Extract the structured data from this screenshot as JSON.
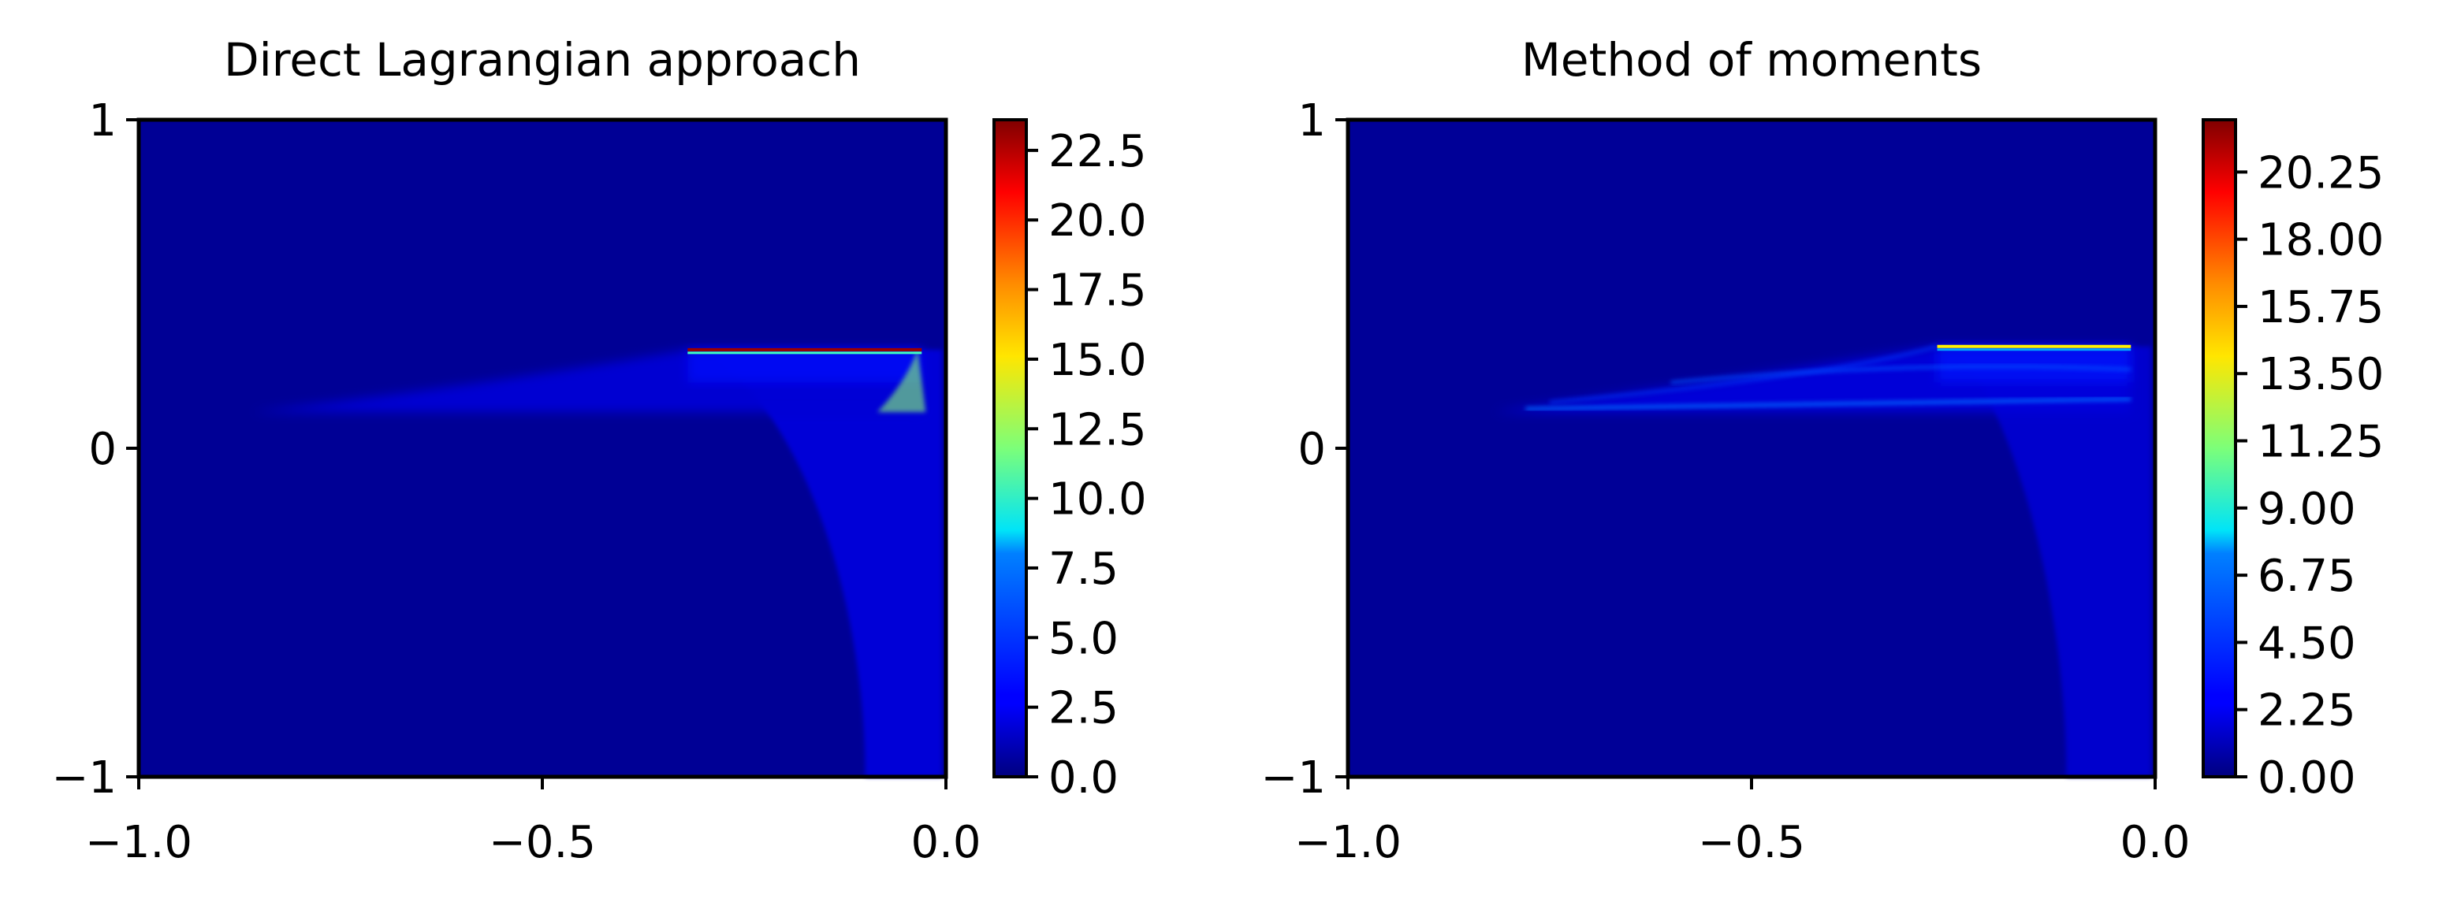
{
  "chart_data": [
    {
      "type": "heatmap",
      "title": "Direct Lagrangian approach",
      "xlim": [
        -1.0,
        0.0
      ],
      "ylim": [
        -1,
        1
      ],
      "x_ticks": [
        -1.0,
        -0.5,
        0.0
      ],
      "x_tick_labels": [
        "−1.0",
        "−0.5",
        "0.0"
      ],
      "y_ticks": [
        -1,
        0,
        1
      ],
      "y_tick_labels": [
        "−1",
        "0",
        "1"
      ],
      "colormap": "jet",
      "colorbar": {
        "range": [
          0.0,
          23.6
        ],
        "ticks": [
          0.0,
          2.5,
          5.0,
          7.5,
          10.0,
          12.5,
          15.0,
          17.5,
          20.0,
          22.5
        ],
        "tick_labels": [
          "0.0",
          "2.5",
          "5.0",
          "7.5",
          "10.0",
          "12.5",
          "15.0",
          "17.5",
          "20.0",
          "22.5"
        ]
      },
      "features": {
        "background_value": 0.5,
        "fan_value": 2.0,
        "tail_value": 2.2,
        "edge_value": 23.0,
        "spike_value": 12.0,
        "fan_apex": [
          -0.86,
          0.11
        ],
        "fan_upper_end": [
          -0.32,
          0.3
        ],
        "edge_y": 0.3,
        "edge_x_range": [
          -0.32,
          -0.03
        ],
        "tail_x_range": [
          -0.1,
          -0.005
        ],
        "tail_y_range": [
          -1.0,
          0.3
        ]
      }
    },
    {
      "type": "heatmap",
      "title": "Method of moments",
      "xlim": [
        -1.0,
        0.0
      ],
      "ylim": [
        -1,
        1
      ],
      "x_ticks": [
        -1.0,
        -0.5,
        0.0
      ],
      "x_tick_labels": [
        "−1.0",
        "−0.5",
        "0.0"
      ],
      "y_ticks": [
        -1,
        0,
        1
      ],
      "y_tick_labels": [
        "−1",
        "0",
        "1"
      ],
      "colormap": "jet",
      "colorbar": {
        "range": [
          0.0,
          22.0
        ],
        "ticks": [
          0.0,
          2.25,
          4.5,
          6.75,
          9.0,
          11.25,
          13.5,
          15.75,
          18.0,
          20.25
        ],
        "tick_labels": [
          "0.00",
          "2.25",
          "4.50",
          "6.75",
          "9.00",
          "11.25",
          "13.50",
          "15.75",
          "18.00",
          "20.25"
        ]
      },
      "features": {
        "background_value": 0.5,
        "fan_value": 2.0,
        "tail_value": 1.8,
        "edge_value": 14.0,
        "streak_value": 5.0,
        "fan_apex": [
          -0.82,
          0.11
        ],
        "fan_upper_end": [
          -0.27,
          0.31
        ],
        "edge_y": 0.31,
        "edge_x_range": [
          -0.27,
          -0.03
        ],
        "lower_streak_y": 0.15,
        "tail_x_range": [
          -0.11,
          -0.005
        ],
        "tail_y_range": [
          -1.0,
          0.3
        ]
      }
    }
  ]
}
